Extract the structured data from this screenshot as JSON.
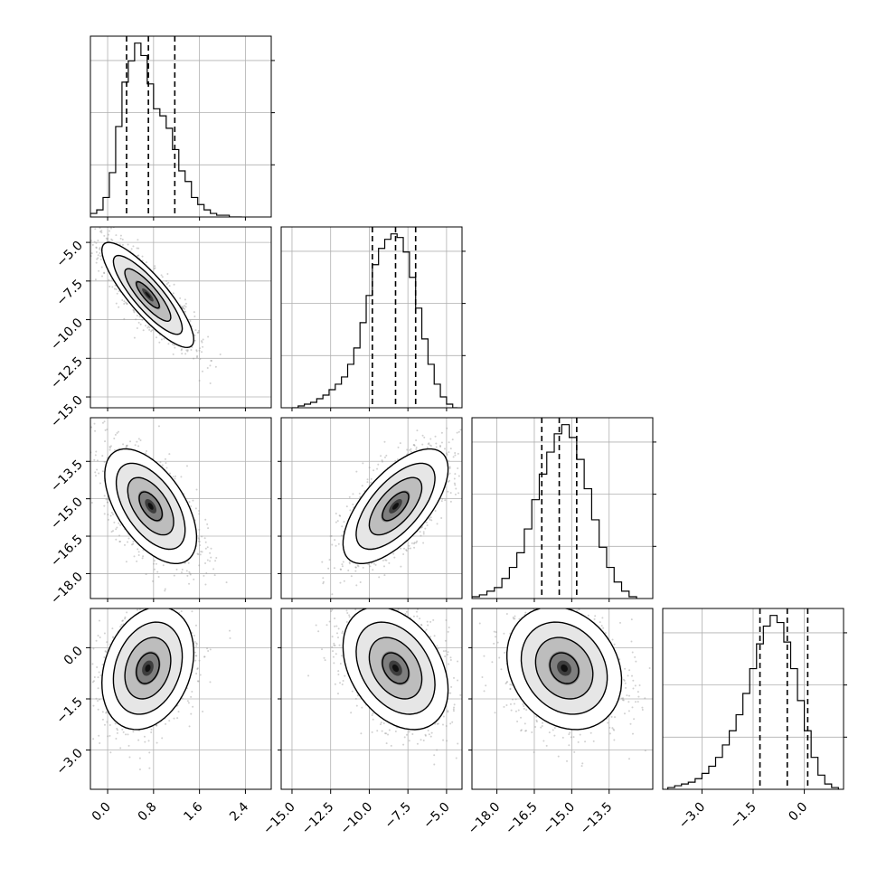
{
  "chart_data": {
    "type": "corner",
    "title": "",
    "parameters": [
      {
        "ticks": [
          0.0,
          0.8,
          1.6,
          2.4
        ],
        "tick_labels": [
          "0.0",
          "0.8",
          "1.6",
          "2.4"
        ],
        "range": [
          -0.3,
          2.85
        ],
        "quantiles": [
          0.33,
          0.71,
          1.17
        ],
        "hist": {
          "edges": [
            -0.3,
            -0.19,
            -0.08,
            0.03,
            0.14,
            0.25,
            0.36,
            0.47,
            0.58,
            0.69,
            0.8,
            0.91,
            1.02,
            1.13,
            1.24,
            1.35,
            1.46,
            1.57,
            1.68,
            1.79,
            1.9,
            2.01,
            2.12,
            2.23,
            2.34
          ],
          "counts": [
            20,
            40,
            110,
            250,
            510,
            760,
            880,
            980,
            910,
            750,
            610,
            570,
            500,
            380,
            260,
            200,
            110,
            70,
            40,
            20,
            10,
            10,
            0,
            0
          ]
        }
      },
      {
        "ticks": [
          -15.0,
          -12.5,
          -10.0,
          -7.5,
          -5.0
        ],
        "tick_labels": [
          "−15.0",
          "−12.5",
          "−10.0",
          "−7.5",
          "−5.0"
        ],
        "range": [
          -15.7,
          -4.0
        ],
        "quantiles": [
          -9.8,
          -8.3,
          -7.0
        ],
        "hist": {
          "edges": [
            -15.0,
            -14.6,
            -14.2,
            -13.8,
            -13.4,
            -13.0,
            -12.6,
            -12.2,
            -11.8,
            -11.4,
            -11.0,
            -10.6,
            -10.2,
            -9.8,
            -9.4,
            -9.0,
            -8.6,
            -8.2,
            -7.8,
            -7.4,
            -7.0,
            -6.6,
            -6.2,
            -5.8,
            -5.4,
            -5.0,
            -4.6,
            -4.3
          ],
          "counts": [
            0,
            10,
            20,
            30,
            50,
            70,
            100,
            130,
            170,
            240,
            330,
            470,
            620,
            790,
            880,
            930,
            960,
            940,
            860,
            720,
            550,
            380,
            240,
            130,
            60,
            20,
            0
          ]
        }
      },
      {
        "ticks": [
          -18.0,
          -16.5,
          -15.0,
          -13.5
        ],
        "tick_labels": [
          "−18.0",
          "−16.5",
          "−15.0",
          "−13.5"
        ],
        "range": [
          -19.0,
          -11.75
        ],
        "quantiles": [
          -16.2,
          -15.5,
          -14.8
        ],
        "hist": {
          "edges": [
            -19.0,
            -18.7,
            -18.4,
            -18.1,
            -17.8,
            -17.5,
            -17.2,
            -16.9,
            -16.6,
            -16.3,
            -16.0,
            -15.7,
            -15.4,
            -15.1,
            -14.8,
            -14.5,
            -14.2,
            -13.9,
            -13.6,
            -13.3,
            -13.0,
            -12.7,
            -12.4
          ],
          "counts": [
            10,
            20,
            40,
            60,
            110,
            170,
            250,
            380,
            540,
            680,
            800,
            900,
            950,
            880,
            760,
            600,
            430,
            280,
            170,
            90,
            40,
            10
          ]
        }
      },
      {
        "ticks": [
          -3.0,
          -1.5,
          0.0
        ],
        "tick_labels": [
          "−3.0",
          "−1.5",
          "0.0"
        ],
        "range": [
          -4.15,
          1.15
        ],
        "quantiles": [
          -1.3,
          -0.5,
          0.1
        ],
        "hist": {
          "edges": [
            -4.0,
            -3.8,
            -3.6,
            -3.4,
            -3.2,
            -3.0,
            -2.8,
            -2.6,
            -2.4,
            -2.2,
            -2.0,
            -1.8,
            -1.6,
            -1.4,
            -1.2,
            -1.0,
            -0.8,
            -0.6,
            -0.4,
            -0.2,
            0.0,
            0.2,
            0.4,
            0.6,
            0.8,
            1.0
          ],
          "counts": [
            10,
            20,
            30,
            40,
            60,
            90,
            130,
            180,
            250,
            330,
            420,
            540,
            680,
            820,
            920,
            980,
            940,
            830,
            680,
            500,
            330,
            180,
            80,
            30,
            10
          ]
        }
      }
    ],
    "pairs": [
      {
        "row": 1,
        "col": 0,
        "mean": [
          0.7,
          -8.4
        ],
        "sd": [
          0.4,
          1.7
        ],
        "rho": -0.85
      },
      {
        "row": 2,
        "col": 0,
        "mean": [
          0.75,
          -15.3
        ],
        "sd": [
          0.4,
          1.15
        ],
        "rho": -0.55
      },
      {
        "row": 2,
        "col": 1,
        "mean": [
          -8.3,
          -15.3
        ],
        "sd": [
          1.7,
          1.15
        ],
        "rho": 0.65
      },
      {
        "row": 3,
        "col": 0,
        "mean": [
          0.7,
          -0.6
        ],
        "sd": [
          0.4,
          0.9
        ],
        "rho": 0.25
      },
      {
        "row": 3,
        "col": 1,
        "mean": [
          -8.3,
          -0.6
        ],
        "sd": [
          1.7,
          0.9
        ],
        "rho": -0.35
      },
      {
        "row": 3,
        "col": 2,
        "mean": [
          -15.3,
          -0.6
        ],
        "sd": [
          1.15,
          0.9
        ],
        "rho": -0.2
      }
    ],
    "contour_levels_sigma": [
      0.5,
      1.0,
      1.5,
      2.0
    ],
    "grid": true,
    "legend": "none",
    "quantile_line_style": "dashed"
  }
}
